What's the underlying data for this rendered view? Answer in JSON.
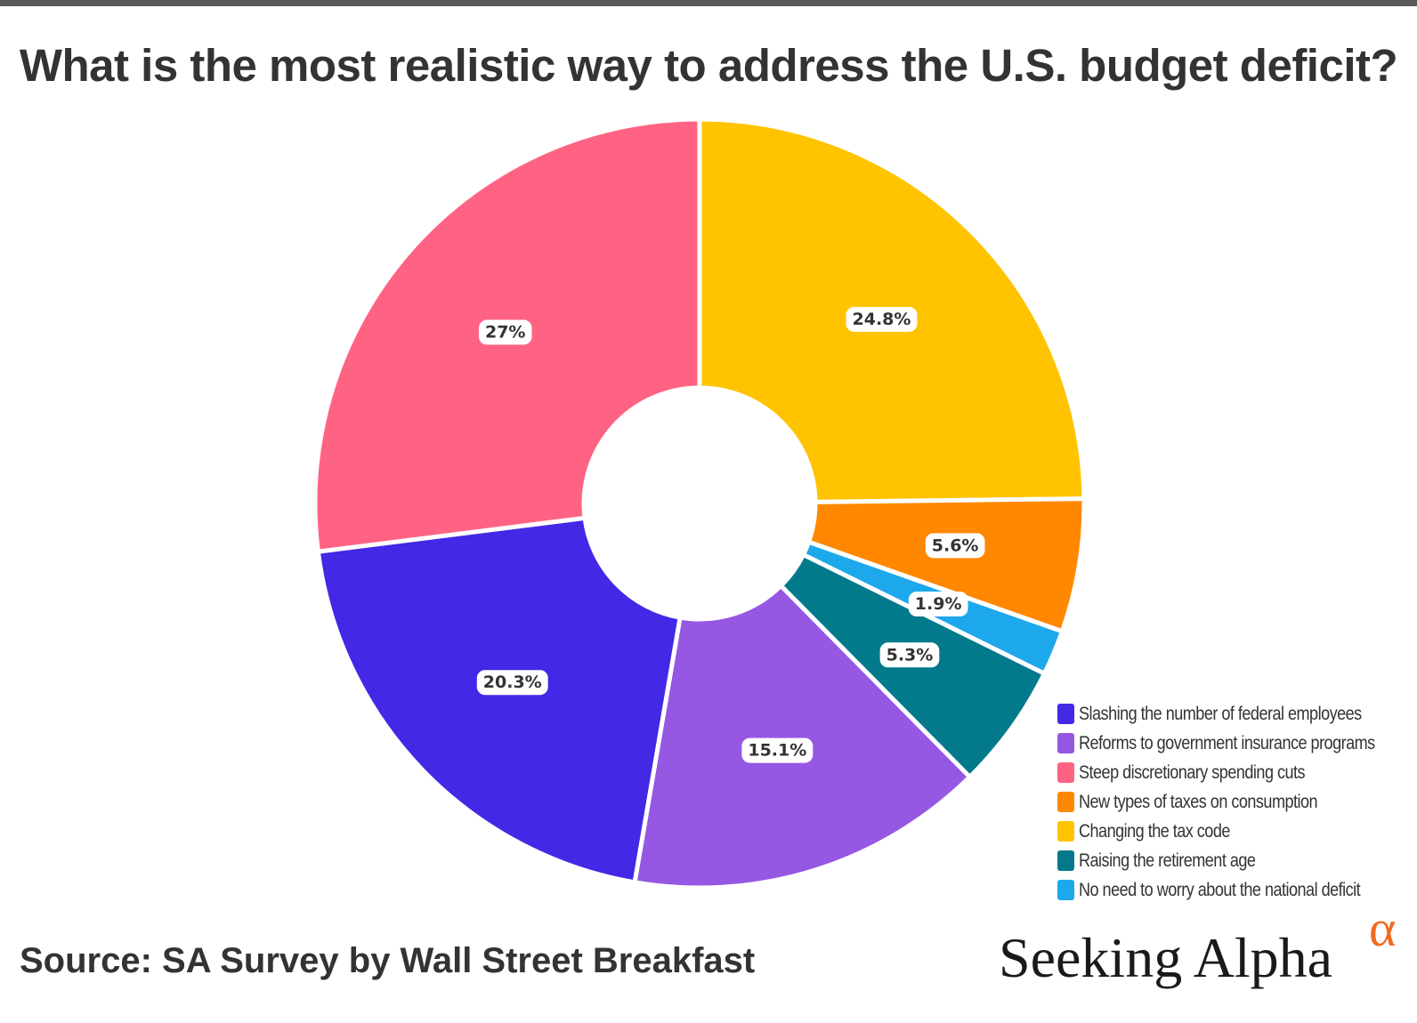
{
  "chart_data": {
    "type": "pie",
    "title": "What is the most realistic way to address the U.S. budget deficit?",
    "donut": true,
    "slices": [
      {
        "label": "Changing the tax code",
        "value": 24.8,
        "display": "24.8%",
        "color": "#FFC300"
      },
      {
        "label": "New types of taxes on consumption",
        "value": 5.6,
        "display": "5.6%",
        "color": "#FF8800"
      },
      {
        "label": "No need to worry about the national deficit",
        "value": 1.9,
        "display": "1.9%",
        "color": "#1EA8EC"
      },
      {
        "label": "Raising the retirement age",
        "value": 5.3,
        "display": "5.3%",
        "color": "#037A8C"
      },
      {
        "label": "Reforms to government insurance programs",
        "value": 15.1,
        "display": "15.1%",
        "color": "#9657E3"
      },
      {
        "label": "Slashing the number of federal employees",
        "value": 20.3,
        "display": "20.3%",
        "color": "#4328E6"
      },
      {
        "label": "Steep discretionary spending cuts",
        "value": 27.0,
        "display": "27%",
        "color": "#FF6384"
      }
    ],
    "legend": {
      "position": "bottom-right",
      "items": [
        {
          "label": "Slashing the number of federal employees",
          "color": "#4328E6"
        },
        {
          "label": "Reforms to government insurance programs",
          "color": "#9657E3"
        },
        {
          "label": "Steep discretionary spending cuts",
          "color": "#FF6384"
        },
        {
          "label": "New types of taxes on consumption",
          "color": "#FF8800"
        },
        {
          "label": "Changing the tax code",
          "color": "#FFC300"
        },
        {
          "label": "Raising the retirement age",
          "color": "#037A8C"
        },
        {
          "label": "No need to worry about the national deficit",
          "color": "#1EA8EC"
        }
      ]
    }
  },
  "source": "Source: SA Survey by Wall Street Breakfast",
  "brand": {
    "name": "Seeking Alpha",
    "symbol": "α"
  }
}
